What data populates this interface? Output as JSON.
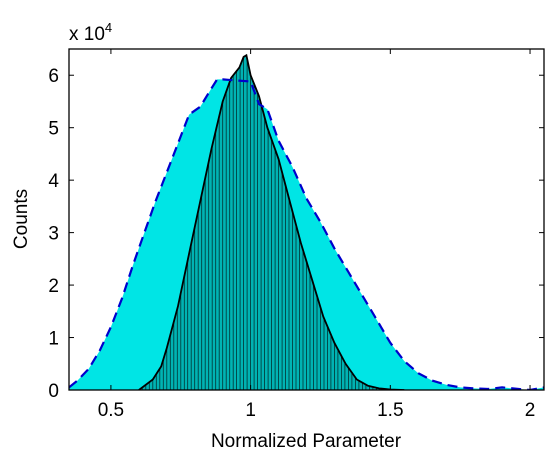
{
  "chart_data": {
    "type": "area",
    "xlabel": "Normalized Parameter",
    "ylabel": "Counts",
    "y_multiplier_base": "x 10",
    "y_multiplier_exponent": "4",
    "xlim": [
      0.35,
      2.05
    ],
    "ylim": [
      0,
      6.5
    ],
    "x_ticks": [
      0.5,
      1,
      1.5,
      2
    ],
    "x_tick_labels": [
      "0.5",
      "1",
      "1.5",
      "2"
    ],
    "y_ticks": [
      0,
      1,
      2,
      3,
      4,
      5,
      6
    ],
    "y_tick_labels": [
      "0",
      "1",
      "2",
      "3",
      "4",
      "5",
      "6"
    ],
    "grid": false,
    "colors": {
      "wide_fill": "#00e5e5",
      "wide_line": "#0000cc",
      "narrow_fill": "#00b3b3",
      "narrow_line": "#000000"
    },
    "series": [
      {
        "style": "filled area with dashed outline",
        "x": [
          0.35,
          0.38,
          0.42,
          0.46,
          0.5,
          0.54,
          0.58,
          0.62,
          0.66,
          0.7,
          0.74,
          0.78,
          0.82,
          0.86,
          0.88,
          0.9,
          0.95,
          1.0,
          1.03,
          1.06,
          1.1,
          1.15,
          1.2,
          1.25,
          1.3,
          1.35,
          1.4,
          1.45,
          1.5,
          1.55,
          1.6,
          1.65,
          1.7,
          1.75,
          1.8,
          1.85,
          1.9,
          2.0,
          2.05
        ],
        "y": [
          0.05,
          0.18,
          0.4,
          0.75,
          1.2,
          1.75,
          2.4,
          3.0,
          3.6,
          4.15,
          4.7,
          5.25,
          5.4,
          5.75,
          5.92,
          5.92,
          5.9,
          5.88,
          5.45,
          5.35,
          4.75,
          4.25,
          3.65,
          3.2,
          2.7,
          2.25,
          1.8,
          1.35,
          0.9,
          0.55,
          0.32,
          0.18,
          0.1,
          0.05,
          0.03,
          0.02,
          0.05,
          0.0,
          0.05
        ]
      },
      {
        "style": "histogram with solid outline",
        "x": [
          0.6,
          0.65,
          0.68,
          0.7,
          0.74,
          0.78,
          0.82,
          0.86,
          0.9,
          0.93,
          0.96,
          0.975,
          0.985,
          1.0,
          1.03,
          1.06,
          1.1,
          1.14,
          1.18,
          1.22,
          1.26,
          1.3,
          1.34,
          1.38,
          1.42,
          1.46,
          1.5,
          1.55
        ],
        "y": [
          0.0,
          0.2,
          0.45,
          0.8,
          1.6,
          2.6,
          3.6,
          4.6,
          5.5,
          5.95,
          6.15,
          6.35,
          6.38,
          6.0,
          5.6,
          5.0,
          4.4,
          3.6,
          2.8,
          2.1,
          1.4,
          0.9,
          0.5,
          0.2,
          0.08,
          0.03,
          0.01,
          0.0
        ]
      }
    ]
  }
}
